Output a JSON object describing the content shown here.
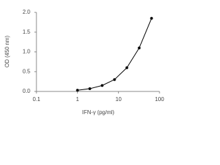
{
  "chart_data": {
    "type": "line",
    "xlabel": "IFN-γ (pg/ml)",
    "ylabel": "OD (450 nm)",
    "x": [
      1,
      2,
      4,
      8,
      16,
      32,
      64
    ],
    "series": [
      {
        "color": "#000000",
        "values": [
          0.03,
          0.07,
          0.15,
          0.3,
          0.6,
          1.1,
          1.85
        ]
      }
    ],
    "xscale": "log",
    "xlim": [
      0.1,
      100
    ],
    "xticks": [
      0.1,
      1,
      10,
      100
    ],
    "ylim": [
      0,
      2
    ],
    "yticks": [
      {
        "value": 0,
        "label": "0.0"
      },
      0.5,
      {
        "value": 1,
        "label": "1.0"
      },
      1.5,
      {
        "value": 2,
        "label": "2.0"
      }
    ],
    "grid": false
  }
}
